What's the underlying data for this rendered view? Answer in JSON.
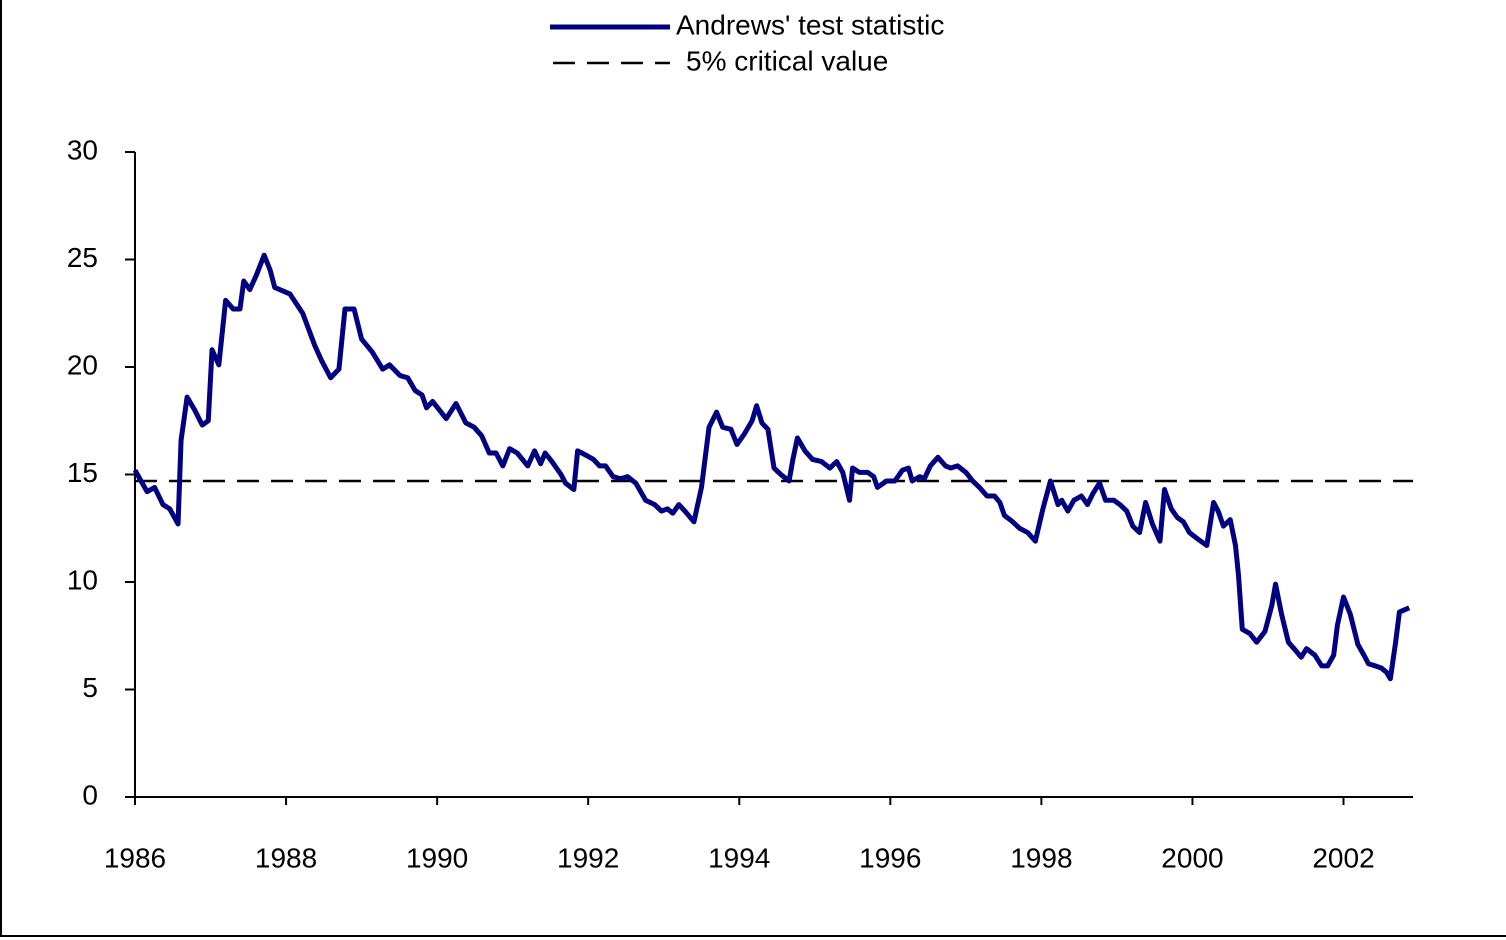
{
  "chart_data": {
    "type": "line",
    "xlim": [
      1986,
      2002.92
    ],
    "xticks": [
      1986,
      1988,
      1990,
      1992,
      1994,
      1996,
      1998,
      2000,
      2002
    ],
    "ylim": [
      0,
      30
    ],
    "yticks": [
      0,
      5,
      10,
      15,
      20,
      25,
      30
    ],
    "series": [
      {
        "name": "Andrews' test statistic",
        "color": "#000080",
        "x": [
          1986.0,
          1986.16,
          1986.26,
          1986.37,
          1986.46,
          1986.57,
          1986.61,
          1986.69,
          1986.79,
          1986.89,
          1986.97,
          1987.02,
          1987.11,
          1987.2,
          1987.3,
          1987.39,
          1987.44,
          1987.52,
          1987.61,
          1987.71,
          1987.79,
          1987.85,
          1988.05,
          1988.22,
          1988.38,
          1988.47,
          1988.59,
          1988.7,
          1988.78,
          1988.9,
          1989.0,
          1989.14,
          1989.28,
          1989.37,
          1989.51,
          1989.61,
          1989.71,
          1989.8,
          1989.86,
          1989.94,
          1990.12,
          1990.25,
          1990.38,
          1990.49,
          1990.59,
          1990.69,
          1990.78,
          1990.87,
          1990.96,
          1991.06,
          1991.2,
          1991.29,
          1991.37,
          1991.43,
          1991.52,
          1991.64,
          1991.7,
          1991.81,
          1991.86,
          1991.97,
          1992.07,
          1992.15,
          1992.23,
          1992.33,
          1992.43,
          1992.52,
          1992.63,
          1992.76,
          1992.88,
          1992.97,
          1993.05,
          1993.12,
          1993.2,
          1993.28,
          1993.4,
          1993.5,
          1993.6,
          1993.7,
          1993.78,
          1993.89,
          1993.97,
          1994.07,
          1994.17,
          1994.23,
          1994.3,
          1994.38,
          1994.46,
          1994.55,
          1994.66,
          1994.71,
          1994.77,
          1994.87,
          1994.97,
          1995.09,
          1995.2,
          1995.29,
          1995.37,
          1995.46,
          1995.5,
          1995.59,
          1995.7,
          1995.78,
          1995.83,
          1995.95,
          1996.06,
          1996.16,
          1996.24,
          1996.29,
          1996.39,
          1996.45,
          1996.53,
          1996.63,
          1996.73,
          1996.8,
          1996.89,
          1997.0,
          1997.09,
          1997.18,
          1997.28,
          1997.38,
          1997.45,
          1997.51,
          1997.62,
          1997.71,
          1997.82,
          1997.92,
          1998.02,
          1998.12,
          1998.22,
          1998.27,
          1998.35,
          1998.43,
          1998.53,
          1998.61,
          1998.68,
          1998.77,
          1998.85,
          1998.96,
          1999.04,
          1999.13,
          1999.21,
          1999.3,
          1999.38,
          1999.47,
          1999.57,
          1999.63,
          1999.72,
          1999.8,
          1999.88,
          1999.96,
          2000.07,
          2000.19,
          2000.28,
          2000.34,
          2000.41,
          2000.5,
          2000.57,
          2000.61,
          2000.66,
          2000.76,
          2000.85,
          2000.96,
          2001.05,
          2001.1,
          2001.18,
          2001.27,
          2001.37,
          2001.44,
          2001.51,
          2001.62,
          2001.71,
          2001.79,
          2001.87,
          2001.92,
          2002.0,
          2002.09,
          2002.19,
          2002.27,
          2002.33,
          2002.42,
          2002.5,
          2002.57,
          2002.62,
          2002.69,
          2002.74,
          2002.87
        ],
        "values": [
          15.2,
          14.2,
          14.4,
          13.6,
          13.4,
          12.7,
          16.6,
          18.6,
          18.0,
          17.3,
          17.5,
          20.8,
          20.1,
          23.1,
          22.7,
          22.7,
          24.0,
          23.6,
          24.3,
          25.2,
          24.5,
          23.7,
          23.4,
          22.5,
          21.0,
          20.3,
          19.5,
          19.9,
          22.7,
          22.7,
          21.3,
          20.7,
          19.9,
          20.1,
          19.6,
          19.5,
          18.9,
          18.7,
          18.1,
          18.4,
          17.6,
          18.3,
          17.4,
          17.2,
          16.8,
          16.0,
          16.0,
          15.4,
          16.2,
          16.0,
          15.4,
          16.1,
          15.5,
          16.0,
          15.6,
          15.0,
          14.6,
          14.3,
          16.1,
          15.9,
          15.7,
          15.4,
          15.4,
          14.9,
          14.8,
          14.9,
          14.6,
          13.8,
          13.6,
          13.3,
          13.4,
          13.2,
          13.6,
          13.3,
          12.8,
          14.4,
          17.2,
          17.9,
          17.2,
          17.1,
          16.4,
          16.9,
          17.5,
          18.2,
          17.4,
          17.1,
          15.3,
          15.0,
          14.7,
          15.7,
          16.7,
          16.1,
          15.7,
          15.6,
          15.3,
          15.6,
          15.1,
          13.8,
          15.3,
          15.1,
          15.1,
          14.9,
          14.4,
          14.7,
          14.7,
          15.2,
          15.3,
          14.7,
          14.9,
          14.8,
          15.4,
          15.8,
          15.4,
          15.3,
          15.4,
          15.1,
          14.7,
          14.4,
          14.0,
          14.0,
          13.7,
          13.1,
          12.8,
          12.5,
          12.3,
          11.9,
          13.4,
          14.7,
          13.6,
          13.8,
          13.3,
          13.8,
          14.0,
          13.6,
          14.1,
          14.6,
          13.8,
          13.8,
          13.6,
          13.3,
          12.6,
          12.3,
          13.7,
          12.7,
          11.9,
          14.3,
          13.4,
          13.0,
          12.8,
          12.3,
          12.0,
          11.7,
          13.7,
          13.3,
          12.6,
          12.9,
          11.7,
          10.3,
          7.8,
          7.6,
          7.2,
          7.7,
          8.9,
          9.9,
          8.5,
          7.2,
          6.8,
          6.5,
          6.9,
          6.6,
          6.1,
          6.1,
          6.6,
          8.0,
          9.3,
          8.5,
          7.1,
          6.6,
          6.2,
          6.1,
          6.0,
          5.8,
          5.5,
          7.2,
          8.6,
          8.8
        ]
      }
    ],
    "reference_line": {
      "name": "5% critical value",
      "value": 14.7,
      "color": "#000000",
      "dashed": true
    }
  }
}
